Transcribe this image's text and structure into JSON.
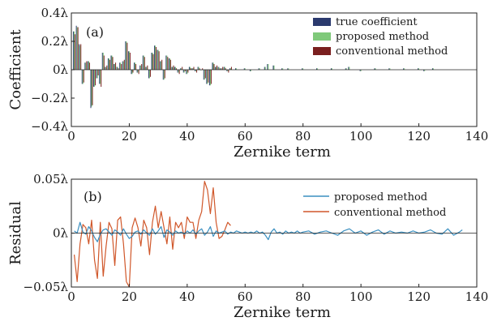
{
  "chart_data": [
    {
      "type": "bar",
      "panel_label": "(a)",
      "xlabel": "Zernike term",
      "ylabel": "Coefficient",
      "xlim": [
        0,
        140
      ],
      "ylim": [
        -0.4,
        0.4
      ],
      "x_ticks": [
        "0",
        "20",
        "40",
        "60",
        "80",
        "100",
        "120",
        "140"
      ],
      "y_ticks": [
        "0.4λ",
        "0.2λ",
        "0λ",
        "−0.2λ",
        "−0.4λ"
      ],
      "legend_position": "top-right",
      "colors": {
        "true": "#2b3a6e",
        "proposed": "#7fc97a",
        "conventional": "#7a1f1f"
      },
      "series": [
        {
          "name": "true coefficient",
          "color": "#2b3a6e",
          "x": [
            1,
            2,
            3,
            4,
            5,
            6,
            7,
            8,
            9,
            10,
            11,
            12,
            13,
            14,
            15,
            16,
            17,
            18,
            19,
            20,
            21,
            22,
            23,
            24,
            25,
            26,
            27,
            28,
            29,
            30,
            31,
            32,
            33,
            34,
            35,
            36,
            37,
            38,
            39,
            40,
            41,
            42,
            43,
            44,
            45,
            46,
            47,
            48,
            49,
            50,
            51,
            52,
            53,
            54,
            55,
            57,
            60,
            62,
            65,
            67,
            68,
            70,
            73,
            75,
            80,
            85,
            90,
            95,
            96,
            100,
            105,
            110,
            115,
            120,
            122,
            125
          ],
          "values": [
            0.27,
            0.31,
            0.18,
            -0.1,
            0.05,
            0.06,
            -0.27,
            -0.12,
            -0.06,
            -0.1,
            0.12,
            0.02,
            0.08,
            0.1,
            0.04,
            0.02,
            0.05,
            0.06,
            0.2,
            0.13,
            -0.03,
            0.05,
            -0.02,
            0.03,
            0.1,
            0.02,
            -0.06,
            0.12,
            0.17,
            0.14,
            0.06,
            -0.07,
            0.1,
            0.08,
            0.02,
            0.02,
            -0.02,
            0.01,
            -0.02,
            -0.03,
            0.02,
            0.01,
            -0.01,
            0.02,
            0.0,
            -0.07,
            -0.1,
            -0.11,
            0.05,
            0.02,
            0.02,
            0.01,
            0.02,
            -0.01,
            0.01,
            0.01,
            0.01,
            -0.01,
            0.01,
            0.02,
            0.04,
            0.03,
            0.01,
            0.01,
            0.01,
            0.01,
            0.01,
            0.01,
            0.02,
            -0.01,
            0.01,
            0.01,
            0.01,
            0.01,
            -0.01,
            0.01
          ]
        },
        {
          "name": "proposed method",
          "color": "#7fc97a",
          "x": [
            1,
            2,
            3,
            4,
            5,
            6,
            7,
            8,
            9,
            10,
            11,
            12,
            13,
            14,
            15,
            16,
            17,
            18,
            19,
            20,
            21,
            22,
            23,
            24,
            25,
            26,
            27,
            28,
            29,
            30,
            31,
            32,
            33,
            34,
            35,
            36,
            37,
            38,
            39,
            40,
            41,
            42,
            43,
            44,
            45,
            46,
            47,
            48,
            49,
            50,
            51,
            52,
            53,
            54,
            55,
            57,
            60,
            62,
            65,
            67,
            68,
            70,
            73,
            75,
            80,
            85,
            90,
            95,
            96,
            100,
            105,
            110,
            115,
            120,
            122,
            125
          ],
          "values": [
            0.27,
            0.3,
            0.17,
            -0.1,
            0.05,
            0.06,
            -0.26,
            -0.12,
            -0.06,
            -0.1,
            0.12,
            0.02,
            0.08,
            0.1,
            0.04,
            0.02,
            0.05,
            0.06,
            0.2,
            0.13,
            -0.03,
            0.05,
            -0.02,
            0.03,
            0.1,
            0.02,
            -0.06,
            0.12,
            0.17,
            0.14,
            0.06,
            -0.07,
            0.1,
            0.08,
            0.02,
            0.02,
            -0.02,
            0.01,
            -0.02,
            -0.03,
            0.02,
            0.01,
            -0.01,
            0.02,
            0.0,
            -0.07,
            -0.1,
            -0.11,
            0.05,
            0.02,
            0.02,
            0.01,
            0.02,
            -0.01,
            0.01,
            0.01,
            0.01,
            -0.01,
            0.01,
            0.02,
            0.04,
            0.03,
            0.01,
            0.01,
            0.01,
            0.01,
            0.01,
            0.01,
            0.02,
            -0.01,
            0.01,
            0.01,
            0.01,
            0.01,
            -0.01,
            0.01
          ]
        },
        {
          "name": "conventional method",
          "color": "#7a1f1f",
          "x": [
            1,
            2,
            3,
            4,
            5,
            6,
            7,
            8,
            9,
            10,
            11,
            12,
            13,
            14,
            15,
            16,
            17,
            18,
            19,
            20,
            21,
            22,
            23,
            24,
            25,
            26,
            27,
            28,
            29,
            30,
            31,
            32,
            33,
            34,
            35,
            36,
            37,
            38,
            39,
            40,
            41,
            42,
            43,
            44,
            45,
            46,
            47,
            48,
            49,
            50,
            51,
            52,
            53,
            54,
            55
          ],
          "values": [
            0.25,
            0.3,
            0.18,
            -0.09,
            0.06,
            0.05,
            -0.25,
            -0.11,
            -0.04,
            -0.12,
            0.1,
            0.03,
            0.07,
            0.09,
            0.05,
            0.01,
            0.04,
            0.07,
            0.19,
            0.12,
            -0.02,
            0.04,
            -0.03,
            0.04,
            0.09,
            0.03,
            -0.05,
            0.11,
            0.16,
            0.13,
            0.07,
            -0.06,
            0.09,
            0.07,
            0.03,
            0.01,
            -0.03,
            0.02,
            -0.01,
            -0.02,
            0.01,
            0.02,
            -0.02,
            0.01,
            0.01,
            -0.06,
            -0.09,
            -0.1,
            0.04,
            0.03,
            0.01,
            0.02,
            0.01,
            -0.02,
            0.02
          ]
        }
      ]
    },
    {
      "type": "line",
      "panel_label": "(b)",
      "xlabel": "Zernike term",
      "ylabel": "Residual",
      "xlim": [
        0,
        140
      ],
      "ylim": [
        -0.05,
        0.05
      ],
      "x_ticks": [
        "0",
        "20",
        "40",
        "60",
        "80",
        "100",
        "120",
        "140"
      ],
      "y_ticks": [
        "0.05λ",
        "0λ",
        "−0.05λ"
      ],
      "legend_position": "top-right",
      "series": [
        {
          "name": "proposed method",
          "color": "#3a8fc0",
          "x": [
            1,
            2,
            3,
            4,
            5,
            6,
            7,
            8,
            9,
            10,
            11,
            12,
            13,
            14,
            15,
            16,
            17,
            18,
            19,
            20,
            21,
            22,
            23,
            24,
            25,
            26,
            27,
            28,
            29,
            30,
            31,
            32,
            33,
            34,
            35,
            36,
            37,
            38,
            39,
            40,
            41,
            42,
            43,
            44,
            45,
            46,
            47,
            48,
            49,
            50,
            51,
            52,
            53,
            54,
            55,
            56,
            57,
            58,
            59,
            60,
            61,
            62,
            63,
            64,
            65,
            66,
            67,
            68,
            69,
            70,
            71,
            72,
            73,
            74,
            75,
            76,
            77,
            78,
            79,
            80,
            82,
            84,
            86,
            88,
            90,
            92,
            94,
            96,
            98,
            100,
            102,
            104,
            106,
            108,
            110,
            112,
            114,
            116,
            118,
            120,
            122,
            124,
            126,
            128,
            130,
            132,
            134,
            135
          ],
          "values": [
            0.002,
            0.0,
            0.01,
            0.001,
            -0.001,
            0.006,
            0.002,
            -0.004,
            -0.008,
            -0.001,
            0.003,
            0.004,
            0.001,
            -0.002,
            0.003,
            0.001,
            -0.002,
            0.004,
            -0.001,
            -0.005,
            -0.003,
            0.001,
            0.002,
            -0.001,
            0.003,
            0.0,
            -0.002,
            0.004,
            -0.001,
            0.002,
            0.006,
            -0.004,
            0.003,
            0.001,
            -0.002,
            0.002,
            0.0,
            0.001,
            -0.001,
            0.002,
            0.0,
            0.003,
            -0.001,
            0.002,
            0.004,
            -0.002,
            0.001,
            0.006,
            -0.003,
            0.002,
            0.0,
            0.001,
            0.002,
            -0.001,
            0.001,
            0.0,
            0.002,
            0.001,
            0.0,
            0.001,
            0.0,
            0.001,
            0.0,
            0.002,
            0.0,
            0.001,
            -0.002,
            -0.006,
            0.001,
            0.004,
            0.0,
            0.001,
            -0.001,
            0.002,
            0.0,
            0.001,
            0.0,
            0.002,
            0.0,
            0.001,
            0.002,
            -0.001,
            0.001,
            0.002,
            0.0,
            -0.002,
            0.002,
            0.004,
            0.0,
            0.002,
            -0.002,
            0.001,
            0.003,
            -0.001,
            0.002,
            0.0,
            0.001,
            0.0,
            0.002,
            0.0,
            0.001,
            0.003,
            0.0,
            -0.001,
            0.004,
            -0.002,
            0.001,
            0.003
          ]
        },
        {
          "name": "conventional method",
          "color": "#d0572a",
          "x": [
            1,
            2,
            3,
            4,
            5,
            6,
            7,
            8,
            9,
            10,
            11,
            12,
            13,
            14,
            15,
            16,
            17,
            18,
            19,
            20,
            21,
            22,
            23,
            24,
            25,
            26,
            27,
            28,
            29,
            30,
            31,
            32,
            33,
            34,
            35,
            36,
            37,
            38,
            39,
            40,
            41,
            42,
            43,
            44,
            45,
            46,
            47,
            48,
            49,
            50,
            51,
            52,
            53,
            54,
            55
          ],
          "values": [
            -0.02,
            -0.045,
            -0.01,
            0.008,
            0.005,
            -0.01,
            0.012,
            -0.025,
            -0.042,
            0.01,
            -0.04,
            -0.012,
            0.01,
            0.004,
            -0.03,
            0.012,
            0.015,
            -0.01,
            -0.045,
            -0.05,
            0.005,
            0.014,
            0.005,
            -0.012,
            0.012,
            0.005,
            -0.02,
            0.01,
            0.025,
            0.005,
            0.02,
            0.005,
            -0.01,
            0.015,
            -0.015,
            0.01,
            0.005,
            0.01,
            -0.005,
            0.015,
            0.01,
            0.01,
            -0.005,
            0.012,
            0.02,
            0.048,
            0.04,
            0.018,
            0.042,
            0.01,
            -0.005,
            -0.003,
            0.003,
            0.01,
            0.007
          ]
        }
      ]
    }
  ]
}
